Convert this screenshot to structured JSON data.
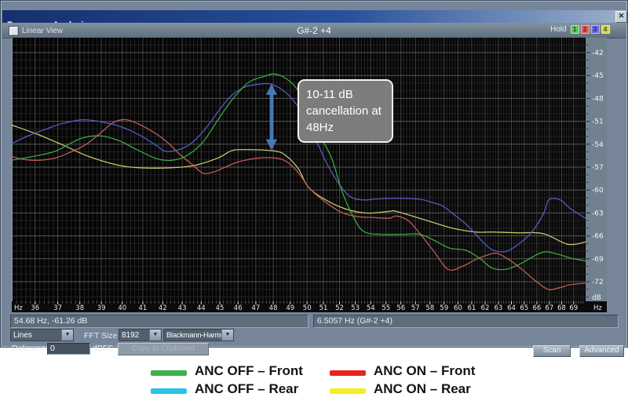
{
  "icons": {
    "close": "✕",
    "dropdown_arrow": "▼"
  },
  "window": {
    "title": "Frequency Analysis",
    "toolbar": {
      "linear_view_label": "Linear View",
      "note_title": "G#-2 +4",
      "hold_label": "Hold",
      "hold_buttons": [
        {
          "label": "1",
          "color": "#63c163"
        },
        {
          "label": "2",
          "color": "#e05a5a"
        },
        {
          "label": "3",
          "color": "#6a6ae0"
        },
        {
          "label": "4",
          "color": "#d6d052"
        }
      ]
    }
  },
  "status": {
    "readout_left": "54.68 Hz, -61.26 dB",
    "readout_right": "6.5057 Hz (G#-2 +4)"
  },
  "controls": {
    "display_mode": "Lines",
    "fft_label": "FFT Size",
    "fft_size": "8192",
    "window_function": "Blackmann-Harris",
    "reference_label": "Reference",
    "reference_value": "0",
    "reference_unit": "dBFS",
    "copy_button": "Copy to Clipboard",
    "scan_button": "Scan",
    "advanced_button": "Advanced"
  },
  "legend": [
    {
      "label": "ANC OFF – Front",
      "color": "#3cb049"
    },
    {
      "label": "ANC OFF – Rear",
      "color": "#28c4e8"
    },
    {
      "label": "ANC ON – Front",
      "color": "#e8251a"
    },
    {
      "label": "ANC ON – Rear",
      "color": "#f5ee1e"
    }
  ],
  "chart_data": {
    "type": "line",
    "title": "G#-2 +4",
    "xlabel": "Hz",
    "ylabel": "dB",
    "x_scale": "log",
    "x_range": [
      35,
      70
    ],
    "y_range": [
      -74.57,
      -40.05
    ],
    "x_ticks": [
      36,
      37,
      38,
      39,
      40,
      41,
      42,
      43,
      44,
      45,
      46,
      47,
      48,
      49,
      50,
      51,
      52,
      53,
      54,
      55,
      56,
      57,
      58,
      59,
      60,
      61,
      62,
      63,
      64,
      65,
      66,
      67,
      68,
      69
    ],
    "y_ticks": [
      -42,
      -45,
      -48,
      -51,
      -54,
      -57,
      -60,
      -63,
      -66,
      -69,
      -72
    ],
    "grid": true,
    "legend_position": "below",
    "annotation": {
      "text": "10-11 dB cancellation at 48Hz",
      "arrow_x_hz": 47.9,
      "arrow_db_from": -46.1,
      "arrow_db_to": -54.8,
      "arrow_color": "#4d82c4"
    },
    "series": [
      {
        "name": "ANC ON – Rear",
        "color": "#cdd06e",
        "points": [
          [
            35,
            -51.5
          ],
          [
            36.1,
            -52.7
          ],
          [
            37.3,
            -54.2
          ],
          [
            38.4,
            -55.6
          ],
          [
            39.9,
            -56.8
          ],
          [
            41,
            -57.1
          ],
          [
            42.3,
            -57.1
          ],
          [
            43.6,
            -56.8
          ],
          [
            44.9,
            -55.8
          ],
          [
            45.6,
            -54.9
          ],
          [
            46.3,
            -54.7
          ],
          [
            48.1,
            -54.9
          ],
          [
            48.8,
            -55.6
          ],
          [
            49.5,
            -57.3
          ],
          [
            50.2,
            -59.9
          ],
          [
            51.9,
            -62.1
          ],
          [
            53.6,
            -63
          ],
          [
            55.2,
            -62.8
          ],
          [
            55.7,
            -62.8
          ],
          [
            57.8,
            -64
          ],
          [
            59.6,
            -65
          ],
          [
            61.3,
            -65.5
          ],
          [
            62.5,
            -65.5
          ],
          [
            64.5,
            -65.6
          ],
          [
            66.5,
            -65.7
          ],
          [
            68.5,
            -67.1
          ],
          [
            70,
            -66.8
          ]
        ]
      },
      {
        "name": "ANC ON – Front",
        "color": "#c85f5b",
        "points": [
          [
            35,
            -55.6
          ],
          [
            35.5,
            -56
          ],
          [
            36.2,
            -56.1
          ],
          [
            36.9,
            -55.8
          ],
          [
            37.6,
            -55
          ],
          [
            38.3,
            -54
          ],
          [
            39.1,
            -52.2
          ],
          [
            39.6,
            -51.1
          ],
          [
            40.2,
            -50.8
          ],
          [
            40.9,
            -51.5
          ],
          [
            41.7,
            -52.7
          ],
          [
            42.3,
            -53.9
          ],
          [
            42.9,
            -55.4
          ],
          [
            43.5,
            -56.6
          ],
          [
            44.1,
            -57.8
          ],
          [
            44.7,
            -57.6
          ],
          [
            45.3,
            -57
          ],
          [
            45.9,
            -56.4
          ],
          [
            46.6,
            -56
          ],
          [
            47.2,
            -55.8
          ],
          [
            48.1,
            -55.8
          ],
          [
            48.8,
            -56.3
          ],
          [
            49.5,
            -57.8
          ],
          [
            50.2,
            -59.9
          ],
          [
            51.2,
            -61.7
          ],
          [
            52.2,
            -63
          ],
          [
            53.2,
            -63.5
          ],
          [
            54.2,
            -63.6
          ],
          [
            55.2,
            -63.7
          ],
          [
            55.7,
            -63.4
          ],
          [
            56.5,
            -64
          ],
          [
            57.3,
            -65.7
          ],
          [
            58.3,
            -68.1
          ],
          [
            59.3,
            -70.4
          ],
          [
            60.3,
            -70
          ],
          [
            61.3,
            -69.1
          ],
          [
            62.2,
            -68.5
          ],
          [
            62.9,
            -68.3
          ],
          [
            63.8,
            -69.1
          ],
          [
            64.9,
            -70.5
          ],
          [
            65.9,
            -71.9
          ],
          [
            66.9,
            -73
          ],
          [
            67.8,
            -72.8
          ],
          [
            68.7,
            -72.4
          ],
          [
            70,
            -72.2
          ]
        ]
      },
      {
        "name": "ANC OFF – Rear",
        "color": "#5a5fd0",
        "points": [
          [
            35,
            -53.9
          ],
          [
            35.7,
            -52.9
          ],
          [
            36.5,
            -52
          ],
          [
            37.2,
            -51.3
          ],
          [
            38.2,
            -50.8
          ],
          [
            39.4,
            -51.3
          ],
          [
            40.2,
            -52
          ],
          [
            40.9,
            -52.9
          ],
          [
            41.7,
            -54.2
          ],
          [
            42.1,
            -54.9
          ],
          [
            42.7,
            -54.8
          ],
          [
            43.3,
            -54.2
          ],
          [
            43.9,
            -52.9
          ],
          [
            44.5,
            -51.1
          ],
          [
            45.1,
            -49.1
          ],
          [
            45.7,
            -47.5
          ],
          [
            46.4,
            -46.5
          ],
          [
            47,
            -46.2
          ],
          [
            47.8,
            -46.1
          ],
          [
            48.6,
            -47
          ],
          [
            49.3,
            -48.6
          ],
          [
            50,
            -51.1
          ],
          [
            50.7,
            -54.2
          ],
          [
            51.2,
            -56.5
          ],
          [
            52,
            -59.3
          ],
          [
            52.7,
            -60.9
          ],
          [
            53.5,
            -61.3
          ],
          [
            54.2,
            -61.2
          ],
          [
            55.2,
            -61.1
          ],
          [
            56.2,
            -61.1
          ],
          [
            57.3,
            -61.2
          ],
          [
            58.1,
            -61.6
          ],
          [
            58.9,
            -62.1
          ],
          [
            59.7,
            -63.2
          ],
          [
            60.6,
            -64.5
          ],
          [
            61.4,
            -66
          ],
          [
            62,
            -67.1
          ],
          [
            62.5,
            -67.8
          ],
          [
            63.2,
            -68.1
          ],
          [
            63.8,
            -67.9
          ],
          [
            64.7,
            -66.9
          ],
          [
            65.6,
            -65.5
          ],
          [
            66.5,
            -63.2
          ],
          [
            66.9,
            -61.4
          ],
          [
            67.4,
            -61.1
          ],
          [
            68,
            -61.4
          ],
          [
            68.7,
            -62.4
          ],
          [
            70,
            -63.7
          ]
        ]
      },
      {
        "name": "ANC OFF – Front",
        "color": "#3fae46",
        "points": [
          [
            35,
            -56.1
          ],
          [
            35.9,
            -55.6
          ],
          [
            36.9,
            -54.9
          ],
          [
            38,
            -53.3
          ],
          [
            38.9,
            -52.9
          ],
          [
            39.8,
            -53.5
          ],
          [
            40.7,
            -54.7
          ],
          [
            41.7,
            -55.9
          ],
          [
            42.5,
            -56.1
          ],
          [
            43.3,
            -55.4
          ],
          [
            44.1,
            -53.7
          ],
          [
            44.9,
            -50.8
          ],
          [
            45.7,
            -48.1
          ],
          [
            46.6,
            -45.9
          ],
          [
            47.5,
            -45.1
          ],
          [
            48,
            -44.8
          ],
          [
            48.6,
            -45.2
          ],
          [
            49.3,
            -46.5
          ],
          [
            50,
            -49.1
          ],
          [
            50.7,
            -52.5
          ],
          [
            51.5,
            -55.8
          ],
          [
            52.2,
            -60.4
          ],
          [
            53,
            -64
          ],
          [
            53.6,
            -65.5
          ],
          [
            54.7,
            -65.8
          ],
          [
            56.2,
            -65.8
          ],
          [
            57.3,
            -65.8
          ],
          [
            58.3,
            -66.6
          ],
          [
            59.4,
            -67.6
          ],
          [
            60.6,
            -67.9
          ],
          [
            61.7,
            -69.1
          ],
          [
            62.5,
            -70.2
          ],
          [
            63.5,
            -70.4
          ],
          [
            64.4,
            -69.9
          ],
          [
            65.3,
            -69.1
          ],
          [
            66.2,
            -68.3
          ],
          [
            66.8,
            -68.1
          ],
          [
            67.7,
            -68.4
          ],
          [
            68.7,
            -68.9
          ],
          [
            70,
            -69.3
          ]
        ]
      }
    ]
  }
}
